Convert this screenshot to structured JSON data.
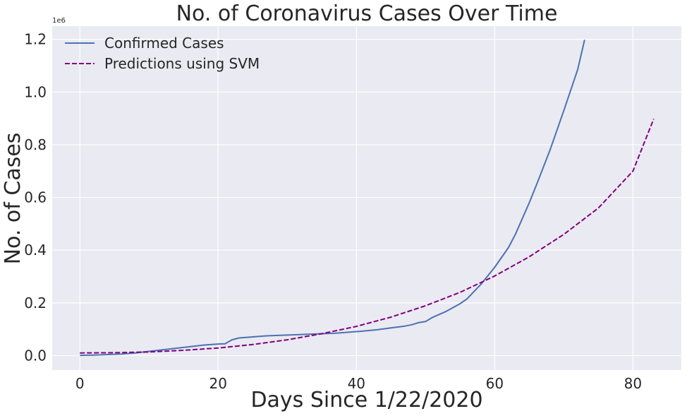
{
  "chart_data": {
    "type": "line",
    "title": "No. of Coronavirus Cases Over Time",
    "xlabel": "Days Since 1/22/2020",
    "ylabel": "No. of Cases",
    "y_offset_label": "1e6",
    "xlim": [
      -4,
      87
    ],
    "ylim": [
      -0.055,
      1.25
    ],
    "x_ticks": [
      0,
      20,
      40,
      60,
      80
    ],
    "x_tick_labels": [
      "0",
      "20",
      "40",
      "60",
      "80"
    ],
    "y_ticks": [
      0,
      0.2,
      0.4,
      0.6,
      0.8,
      1.0,
      1.2
    ],
    "y_tick_labels": [
      "0.0",
      "0.2",
      "0.4",
      "0.6",
      "0.8",
      "1.0",
      "1.2"
    ],
    "grid": true,
    "legend_position": "upper-left",
    "colors": {
      "background": "#eaeaf2",
      "grid": "#ffffff",
      "confirmed": "#4c72b0",
      "svm": "#800080"
    },
    "series": [
      {
        "name": "Confirmed Cases",
        "style": "solid",
        "x": [
          0,
          2,
          4,
          6,
          8,
          10,
          12,
          14,
          16,
          18,
          20,
          21,
          22,
          23,
          25,
          27,
          29,
          31,
          33,
          35,
          37,
          39,
          41,
          43,
          45,
          47,
          48,
          49,
          50,
          51,
          53,
          55,
          56,
          58,
          60,
          62,
          63,
          65,
          66,
          68,
          70,
          72,
          73
        ],
        "y": [
          0.001,
          0.002,
          0.004,
          0.006,
          0.01,
          0.016,
          0.022,
          0.028,
          0.034,
          0.04,
          0.044,
          0.045,
          0.06,
          0.067,
          0.071,
          0.075,
          0.077,
          0.079,
          0.081,
          0.083,
          0.085,
          0.089,
          0.093,
          0.098,
          0.105,
          0.112,
          0.117,
          0.125,
          0.129,
          0.145,
          0.168,
          0.197,
          0.215,
          0.27,
          0.335,
          0.41,
          0.46,
          0.58,
          0.645,
          0.78,
          0.93,
          1.085,
          1.198
        ]
      },
      {
        "name": "Predictions using SVM",
        "style": "dashed",
        "x": [
          0,
          5,
          10,
          15,
          20,
          25,
          30,
          35,
          40,
          45,
          50,
          55,
          60,
          65,
          70,
          75,
          80,
          83
        ],
        "y": [
          0.01,
          0.011,
          0.014,
          0.02,
          0.029,
          0.042,
          0.06,
          0.083,
          0.111,
          0.146,
          0.189,
          0.24,
          0.302,
          0.375,
          0.46,
          0.56,
          0.7,
          0.898
        ]
      }
    ]
  }
}
